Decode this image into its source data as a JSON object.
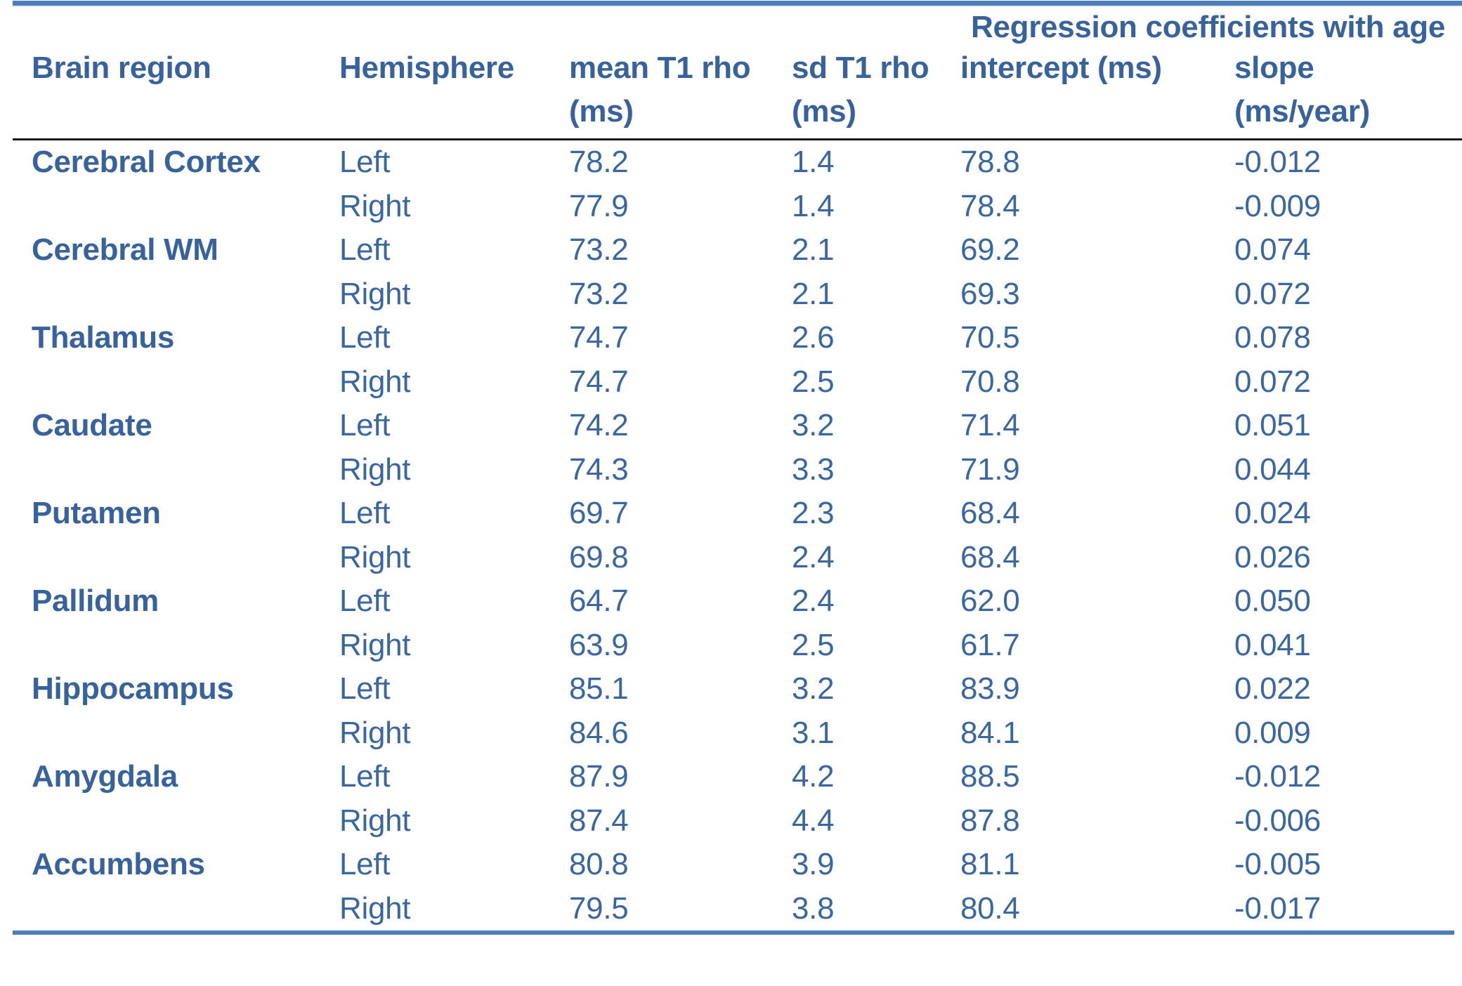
{
  "colors": {
    "accent_bar": "#4d7ebc",
    "text": "#37629b",
    "header_rule": "#1a1a1a"
  },
  "table": {
    "span_header": "Regression coefficients with age",
    "columns": [
      {
        "label": "Brain region",
        "unit": ""
      },
      {
        "label": "Hemisphere",
        "unit": ""
      },
      {
        "label": "mean T1 rho",
        "unit": "(ms)"
      },
      {
        "label": "sd T1 rho",
        "unit": "(ms)"
      },
      {
        "label": "intercept (ms)",
        "unit": ""
      },
      {
        "label": "slope",
        "unit": "(ms/year)"
      }
    ],
    "rows": [
      {
        "region": "Cerebral Cortex",
        "hemisphere": "Left",
        "mean": "78.2",
        "sd": "1.4",
        "intercept": "78.8",
        "slope": "-0.012"
      },
      {
        "region": "",
        "hemisphere": "Right",
        "mean": "77.9",
        "sd": "1.4",
        "intercept": "78.4",
        "slope": "-0.009"
      },
      {
        "region": "Cerebral WM",
        "hemisphere": "Left",
        "mean": "73.2",
        "sd": "2.1",
        "intercept": "69.2",
        "slope": "0.074"
      },
      {
        "region": "",
        "hemisphere": "Right",
        "mean": "73.2",
        "sd": "2.1",
        "intercept": "69.3",
        "slope": "0.072"
      },
      {
        "region": "Thalamus",
        "hemisphere": "Left",
        "mean": "74.7",
        "sd": "2.6",
        "intercept": "70.5",
        "slope": "0.078"
      },
      {
        "region": "",
        "hemisphere": "Right",
        "mean": "74.7",
        "sd": "2.5",
        "intercept": "70.8",
        "slope": "0.072"
      },
      {
        "region": "Caudate",
        "hemisphere": "Left",
        "mean": "74.2",
        "sd": "3.2",
        "intercept": "71.4",
        "slope": "0.051"
      },
      {
        "region": "",
        "hemisphere": "Right",
        "mean": "74.3",
        "sd": "3.3",
        "intercept": "71.9",
        "slope": "0.044"
      },
      {
        "region": "Putamen",
        "hemisphere": "Left",
        "mean": "69.7",
        "sd": "2.3",
        "intercept": "68.4",
        "slope": "0.024"
      },
      {
        "region": "",
        "hemisphere": "Right",
        "mean": "69.8",
        "sd": "2.4",
        "intercept": "68.4",
        "slope": "0.026"
      },
      {
        "region": "Pallidum",
        "hemisphere": "Left",
        "mean": "64.7",
        "sd": "2.4",
        "intercept": "62.0",
        "slope": "0.050"
      },
      {
        "region": "",
        "hemisphere": "Right",
        "mean": "63.9",
        "sd": "2.5",
        "intercept": "61.7",
        "slope": "0.041"
      },
      {
        "region": "Hippocampus",
        "hemisphere": "Left",
        "mean": "85.1",
        "sd": "3.2",
        "intercept": "83.9",
        "slope": "0.022"
      },
      {
        "region": "",
        "hemisphere": "Right",
        "mean": "84.6",
        "sd": "3.1",
        "intercept": "84.1",
        "slope": "0.009"
      },
      {
        "region": "Amygdala",
        "hemisphere": "Left",
        "mean": "87.9",
        "sd": "4.2",
        "intercept": "88.5",
        "slope": "-0.012"
      },
      {
        "region": "",
        "hemisphere": "Right",
        "mean": "87.4",
        "sd": "4.4",
        "intercept": "87.8",
        "slope": "-0.006"
      },
      {
        "region": "Accumbens",
        "hemisphere": "Left",
        "mean": "80.8",
        "sd": "3.9",
        "intercept": "81.1",
        "slope": "-0.005"
      },
      {
        "region": "",
        "hemisphere": "Right",
        "mean": "79.5",
        "sd": "3.8",
        "intercept": "80.4",
        "slope": "-0.017"
      }
    ]
  }
}
